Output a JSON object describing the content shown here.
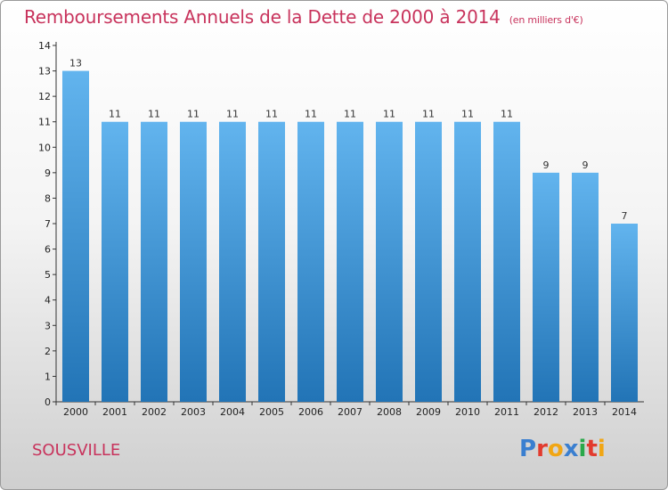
{
  "title": "Remboursements Annuels de la Dette de 2000 à 2014",
  "unit": "(en milliers d'€)",
  "commune": "SOUSVILLE",
  "logo": {
    "text": "Proxiti",
    "colors": [
      "#3a7fd0",
      "#e23b2e",
      "#f1a614",
      "#3a7fd0",
      "#2aa84a",
      "#e23b2e",
      "#f1a614"
    ]
  },
  "colors": {
    "title": "#c8335c",
    "bar_top": "#62b4ee",
    "bar_bottom": "#2274b6"
  },
  "chart_data": {
    "type": "bar",
    "title": "Remboursements Annuels de la Dette de 2000 à 2014",
    "xlabel": "",
    "ylabel": "en milliers d'€",
    "categories": [
      "2000",
      "2001",
      "2002",
      "2003",
      "2004",
      "2005",
      "2006",
      "2007",
      "2008",
      "2009",
      "2010",
      "2011",
      "2012",
      "2013",
      "2014"
    ],
    "values": [
      13,
      11,
      11,
      11,
      11,
      11,
      11,
      11,
      11,
      11,
      11,
      11,
      9,
      9,
      7
    ],
    "ylim": [
      0,
      14
    ],
    "yticks": [
      0,
      1,
      2,
      3,
      4,
      5,
      6,
      7,
      8,
      9,
      10,
      11,
      12,
      13,
      14
    ],
    "yticklabels": [
      "0",
      "1",
      "2",
      "3",
      "4",
      "5",
      "6",
      "7",
      "8",
      "9",
      "10",
      "11",
      "12",
      "13",
      "14"
    ],
    "grid": false
  }
}
